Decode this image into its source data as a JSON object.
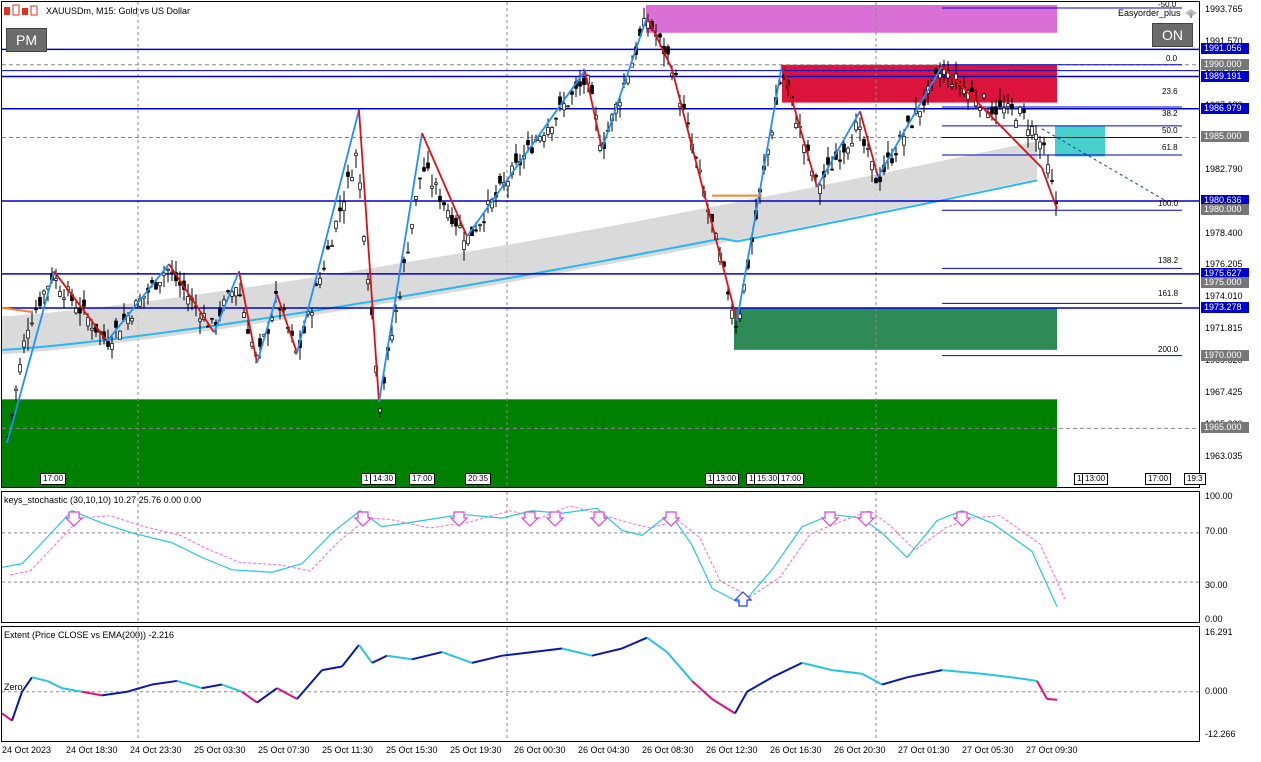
{
  "chart_header": {
    "symbol_title": "XAUUSDm, M15:  Gold vs US Dollar",
    "ea_label": "Easyorder_plus"
  },
  "buttons": {
    "pm": "PM",
    "on": "ON"
  },
  "colors": {
    "grid": "#888888",
    "hline": "#0000cc",
    "bull_wave": "#1e90ff",
    "bear_wave": "#e01010",
    "ema_band": "#d3d3d3",
    "ema_line": "#29b6f6",
    "green_zone": "#008000",
    "dark_green_zone": "#2e8b57",
    "magenta_zone": "#da70d6",
    "crimson_zone": "#dc143c",
    "cyan_zone": "#48d1cc",
    "stoch_main": "#26c6da",
    "stoch_signal": "#ff66cc"
  },
  "price_axis": {
    "labels": [
      "1993.765",
      "1991.570",
      "1989.375",
      "1987.180",
      "1982.790",
      "1978.400",
      "1976.205",
      "1974.010",
      "1971.815",
      "1969.620",
      "1967.425",
      "1965.230",
      "1963.035"
    ],
    "boxes": [
      {
        "text": "1991.056",
        "bg": "#0000cc"
      },
      {
        "text": "1990.000",
        "bg": "#777777"
      },
      {
        "text": "1989.191",
        "bg": "#0000cc"
      },
      {
        "text": "1986.979",
        "bg": "#0000cc"
      },
      {
        "text": "1985.000",
        "bg": "#777777"
      },
      {
        "text": "1980.636",
        "bg": "#0000cc"
      },
      {
        "text": "1980.000",
        "bg": "#777777"
      },
      {
        "text": "1975.627",
        "bg": "#0000cc"
      },
      {
        "text": "1975.000",
        "bg": "#777777"
      },
      {
        "text": "1973.278",
        "bg": "#0000cc"
      },
      {
        "text": "1970.000",
        "bg": "#777777"
      },
      {
        "text": "1965.000",
        "bg": "#777777"
      }
    ]
  },
  "fib_levels": [
    "0.0",
    "23.6",
    "38.2",
    "50.0",
    "61.8",
    "100.0",
    "138.2",
    "161.8",
    "200.0",
    "-50.0"
  ],
  "time_tags": [
    "17:00",
    "1",
    "14:30",
    "17:00",
    "20:35",
    "1",
    "13:00",
    "1",
    "15:30",
    "17:00",
    "1",
    "13:00",
    "17:00",
    "19:3"
  ],
  "stochastic": {
    "title": "keys_stochastic (30,10,10) 10.27 25.76 0.00 0.00",
    "axis": [
      "100.00",
      "70.00",
      "30.00",
      "0.00"
    ]
  },
  "extent": {
    "title": "Extent (Price CLOSE vs EMA(200)) -2.216",
    "zero_label": "Zero",
    "axis": [
      "16.291",
      "0.000",
      "-12.266"
    ]
  },
  "time_axis": [
    "24 Oct 2023",
    "24 Oct 18:30",
    "24 Oct 23:30",
    "25 Oct 03:30",
    "25 Oct 07:30",
    "25 Oct 11:30",
    "25 Oct 15:30",
    "25 Oct 19:30",
    "26 Oct 00:30",
    "26 Oct 04:30",
    "26 Oct 08:30",
    "26 Oct 12:30",
    "26 Oct 16:30",
    "26 Oct 20:30",
    "27 Oct 01:30",
    "27 Oct 05:30",
    "27 Oct 09:30"
  ]
}
